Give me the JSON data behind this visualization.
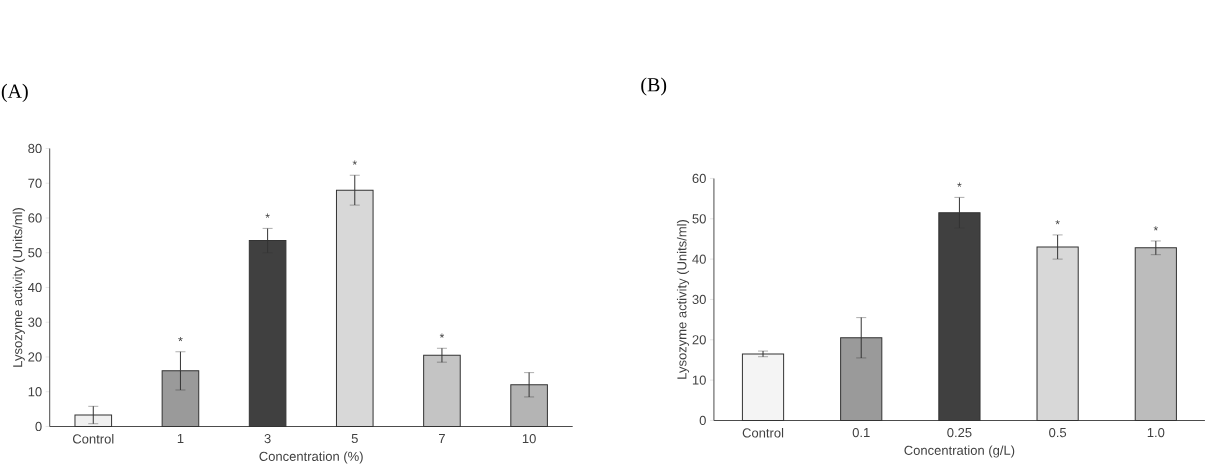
{
  "chart_data": [
    {
      "type": "bar",
      "title": "(A)",
      "xlabel": "Concentration (%)",
      "ylabel": "Lysozyme activity (Units/ml)",
      "categories": [
        "Control",
        "1",
        "3",
        "5",
        "7",
        "10"
      ],
      "values": [
        3.3,
        16,
        53.5,
        68,
        20.5,
        12
      ],
      "errors": [
        2.5,
        5.5,
        3.5,
        4.3,
        2,
        3.5
      ],
      "colors": [
        "#f0f0f0",
        "#9a9a9a",
        "#404040",
        "#d8d8d8",
        "#c4c4c4",
        "#b4b4b4"
      ],
      "ylim": [
        0,
        80
      ],
      "yticks": [
        0,
        10,
        20,
        30,
        40,
        50,
        60,
        70,
        80
      ],
      "annotations": [
        {
          "text": "*",
          "x": "1",
          "y": 21.5
        },
        {
          "text": "*",
          "x": "3",
          "y": 57
        },
        {
          "text": "*",
          "x": "5",
          "y": 72.3
        },
        {
          "text": "*",
          "x": "7",
          "y": 22.5
        }
      ]
    },
    {
      "type": "bar",
      "title": "(B)",
      "xlabel": "Concentration (g/L)",
      "ylabel": "Lysozyme activity (Units/ml)",
      "categories": [
        "Control",
        "0.1",
        "0.25",
        "0.5",
        "1.0"
      ],
      "values": [
        16.5,
        20.5,
        51.5,
        43,
        42.8
      ],
      "errors": [
        0.7,
        5,
        3.8,
        3,
        1.7
      ],
      "colors": [
        "#f4f4f4",
        "#9a9a9a",
        "#404040",
        "#d8d8d8",
        "#bcbcbc"
      ],
      "ylim": [
        0,
        60
      ],
      "yticks": [
        0,
        10,
        20,
        30,
        40,
        50,
        60
      ],
      "annotations": [
        {
          "text": "*",
          "x": "0.25",
          "y": 55.3
        },
        {
          "text": "*",
          "x": "0.5",
          "y": 46
        },
        {
          "text": "*",
          "x": "1.0",
          "y": 44.5
        }
      ]
    }
  ]
}
